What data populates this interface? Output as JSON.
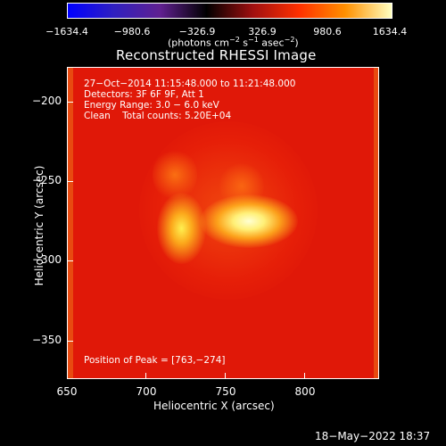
{
  "colorbar": {
    "ticks": [
      "−1634.4",
      "−980.6",
      "−326.9",
      "326.9",
      "980.6",
      "1634.4"
    ],
    "units_pre": "(photons cm",
    "units_sup1": "−2",
    "units_mid": " s",
    "units_sup2": "−1",
    "units_post": " asec",
    "units_sup3": "−2",
    "units_close": ")"
  },
  "title": "Reconstructed RHESSI Image",
  "info": {
    "line1": "27−Oct−2014 11:15:48.000 to 11:21:48.000",
    "line2": "Detectors: 3F 6F 9F, Att 1",
    "line3": "Energy Range: 3.0 − 6.0 keV",
    "line4": "Clean    Total counts: 5.20E+04",
    "peak": "Position of Peak = [763,−274]"
  },
  "axes": {
    "ylabel": "Heliocentric Y (arcsec)",
    "xlabel": "Heliocentric X (arcsec)",
    "yticks": [
      "−200",
      "−250",
      "−300",
      "−350"
    ],
    "xticks": [
      "650",
      "700",
      "750",
      "800"
    ]
  },
  "footer_date": "18−May−2022 18:37",
  "colors": {
    "colormap": [
      "#0000ff",
      "#3020c0",
      "#602090",
      "#000000",
      "#a01010",
      "#ff3000",
      "#ff9000",
      "#ffffc0"
    ],
    "background_image": "#e01808"
  }
}
